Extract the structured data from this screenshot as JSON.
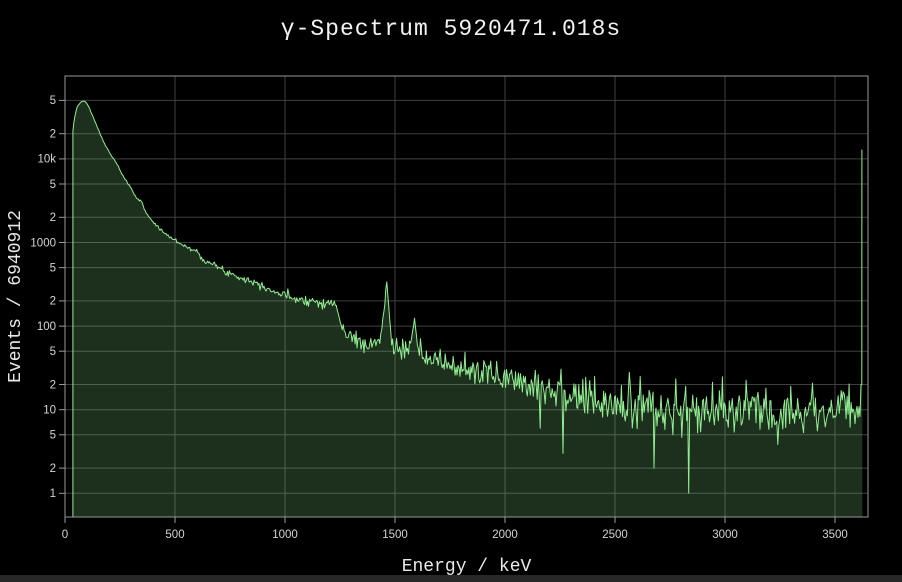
{
  "window": {
    "background_color": "#000000",
    "has_horizontal_scrollbar": true
  },
  "colors": {
    "background": "#000000",
    "plot_background": "#000000",
    "grid": "#3f3f3f",
    "axis_border": "#999999",
    "tick_mark": "#999999",
    "tick_text": "#d4d4d4",
    "title_text": "#f2f2f2",
    "axis_title_text": "#e8e8e8",
    "line": "#90EE90",
    "fill": "rgba(144,238,144,0.2)",
    "scrollbar": "#282828"
  },
  "chart_data": {
    "type": "area",
    "title": "γ-Spectrum 5920471.018s",
    "xlabel": "Energy / keV",
    "ylabel": "Events / 6940912",
    "acquisition_time_label": "5920471.018s",
    "total_events_label": "6940912",
    "x_range_kev": [
      0,
      3650
    ],
    "x_ticks": [
      0,
      500,
      1000,
      1500,
      2000,
      2500,
      3000,
      3500
    ],
    "y_scale": "log",
    "y_range": [
      0.52,
      98000
    ],
    "y_ticks": {
      "values": [
        1,
        2,
        5,
        10,
        20,
        50,
        100,
        200,
        500,
        1000,
        2000,
        5000,
        10000,
        20000,
        50000
      ],
      "labels": [
        "1",
        "2",
        "5",
        "10",
        "2",
        "5",
        "100",
        "2",
        "5",
        "1000",
        "2",
        "5",
        "10k",
        "2",
        "5"
      ]
    },
    "grid": true,
    "legend": false,
    "envelope_kev_counts": [
      [
        36,
        21000
      ],
      [
        42,
        30000
      ],
      [
        55,
        42000
      ],
      [
        72,
        48000
      ],
      [
        90,
        49000
      ],
      [
        105,
        43500
      ],
      [
        125,
        33000
      ],
      [
        148,
        23500
      ],
      [
        175,
        16000
      ],
      [
        205,
        11500
      ],
      [
        233,
        9000
      ],
      [
        245,
        7700
      ],
      [
        268,
        5900
      ],
      [
        293,
        4800
      ],
      [
        320,
        3600
      ],
      [
        350,
        2950
      ],
      [
        368,
        2300
      ],
      [
        400,
        1750
      ],
      [
        440,
        1380
      ],
      [
        485,
        1120
      ],
      [
        530,
        960
      ],
      [
        570,
        840
      ],
      [
        605,
        760
      ],
      [
        625,
        640
      ],
      [
        665,
        560
      ],
      [
        720,
        460
      ],
      [
        780,
        400
      ],
      [
        845,
        345
      ],
      [
        900,
        310
      ],
      [
        940,
        265
      ],
      [
        1000,
        232
      ],
      [
        1080,
        208
      ],
      [
        1170,
        192
      ],
      [
        1232,
        182
      ],
      [
        1248,
        115
      ],
      [
        1270,
        85
      ],
      [
        1320,
        68
      ],
      [
        1395,
        58
      ],
      [
        1432,
        68
      ],
      [
        1448,
        135
      ],
      [
        1461,
        330
      ],
      [
        1475,
        135
      ],
      [
        1490,
        57
      ],
      [
        1535,
        50
      ],
      [
        1572,
        58
      ],
      [
        1588,
        115
      ],
      [
        1604,
        47
      ],
      [
        1650,
        41
      ],
      [
        1750,
        34
      ],
      [
        1850,
        29
      ],
      [
        1950,
        26
      ],
      [
        2050,
        23
      ],
      [
        2150,
        20
      ],
      [
        2250,
        17
      ],
      [
        2350,
        13.5
      ],
      [
        2450,
        11.5
      ],
      [
        2550,
        11
      ],
      [
        2620,
        11.5
      ],
      [
        2700,
        10
      ],
      [
        2850,
        9.5
      ],
      [
        3000,
        10
      ],
      [
        3150,
        9.8
      ],
      [
        3300,
        10
      ],
      [
        3450,
        10
      ],
      [
        3618,
        10.5
      ]
    ],
    "forced_features_kev_counts": [
      [
        2160,
        6
      ],
      [
        2262,
        3
      ],
      [
        2564,
        28
      ],
      [
        2614,
        25
      ],
      [
        2676,
        2
      ],
      [
        2834,
        1
      ]
    ],
    "overflow_spike": {
      "energy_kev": 3624,
      "counts": 12800
    },
    "noise": {
      "model": "poisson-log",
      "seed": 7,
      "bin_width_kev": 4.5
    }
  }
}
